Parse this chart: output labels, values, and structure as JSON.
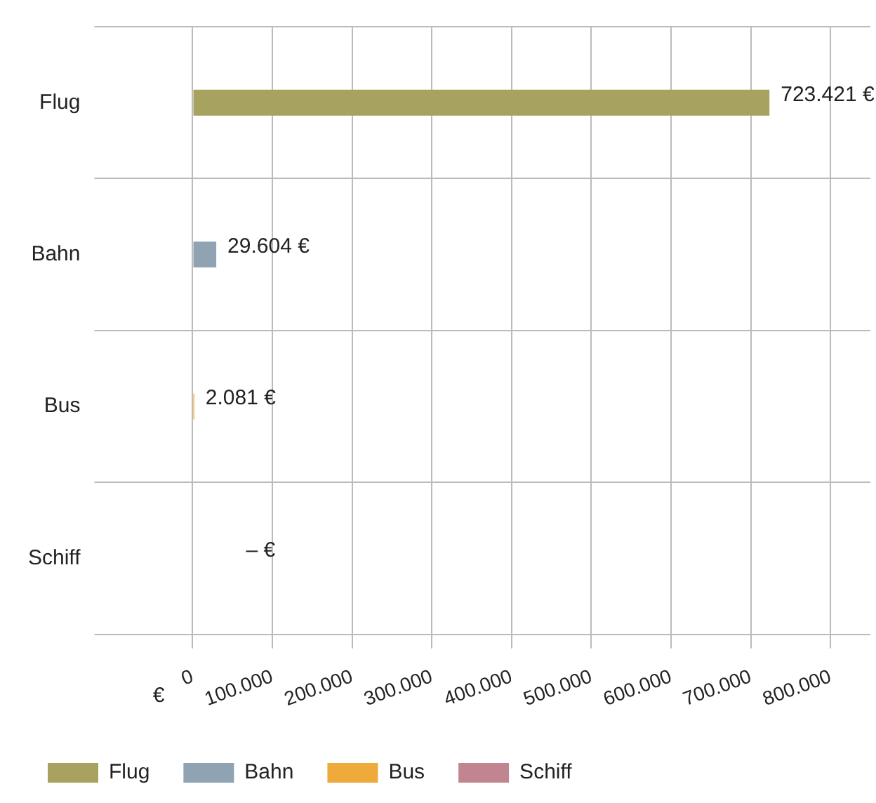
{
  "chart_data": {
    "type": "bar",
    "orientation": "horizontal",
    "stacked": true,
    "xlabel": "€",
    "categories": [
      "Flug",
      "Bahn",
      "Bus",
      "Schiff"
    ],
    "series": [
      {
        "name": "Flug",
        "color": "#a8a260",
        "values": [
          723421,
          null,
          null,
          null
        ],
        "value_labels": [
          "723.421 €",
          null,
          null,
          null
        ]
      },
      {
        "name": "Bahn",
        "color": "#8fa3b2",
        "values": [
          null,
          29604,
          null,
          null
        ],
        "value_labels": [
          null,
          "29.604 €",
          null,
          null
        ]
      },
      {
        "name": "Bus",
        "color": "#eeaa3a",
        "values": [
          null,
          null,
          2081,
          null
        ],
        "value_labels": [
          null,
          null,
          "2.081 €",
          null
        ]
      },
      {
        "name": "Schiff",
        "color": "#c0858f",
        "values": [
          null,
          null,
          null,
          0
        ],
        "value_labels": [
          null,
          null,
          null,
          "– €"
        ]
      }
    ],
    "xlim": [
      0,
      850000
    ],
    "xticks": [
      0,
      {
        "value": 100000,
        "label": "100.000"
      },
      {
        "value": 200000,
        "label": "200.000"
      },
      {
        "value": 300000,
        "label": "300.000"
      },
      {
        "value": 400000,
        "label": "400.000"
      },
      {
        "value": 500000,
        "label": "500.000"
      },
      {
        "value": 600000,
        "label": "600.000"
      },
      {
        "value": 700000,
        "label": "700.000"
      },
      {
        "value": 800000,
        "label": "800.000"
      }
    ],
    "grid": true,
    "legend": "bottom left"
  }
}
